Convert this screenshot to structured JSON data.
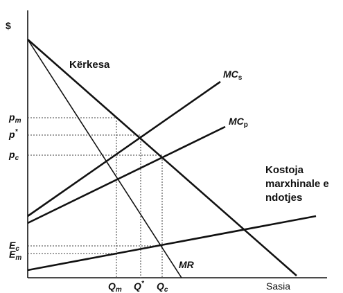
{
  "axes": {
    "y_label": "$",
    "x_label": "Sasia"
  },
  "curves": {
    "demand": "Kërkesa",
    "mr": "MR",
    "mc_social": {
      "base": "MC",
      "sub": "s"
    },
    "mc_private": {
      "base": "MC",
      "sub": "p"
    },
    "pollution": [
      "Kostoja",
      "marxhinale e",
      "ndotjes"
    ]
  },
  "price_labels": [
    {
      "base": "p",
      "sub": "m"
    },
    {
      "base": "p",
      "sup": "*"
    },
    {
      "base": "p",
      "sub": "c"
    },
    {
      "base": "E",
      "sub": "c"
    },
    {
      "base": "E",
      "sub": "m"
    }
  ],
  "quantity_labels": [
    {
      "base": "Q",
      "sub": "m"
    },
    {
      "base": "Q",
      "sup": "*"
    },
    {
      "base": "Q",
      "sub": "c"
    }
  ]
}
